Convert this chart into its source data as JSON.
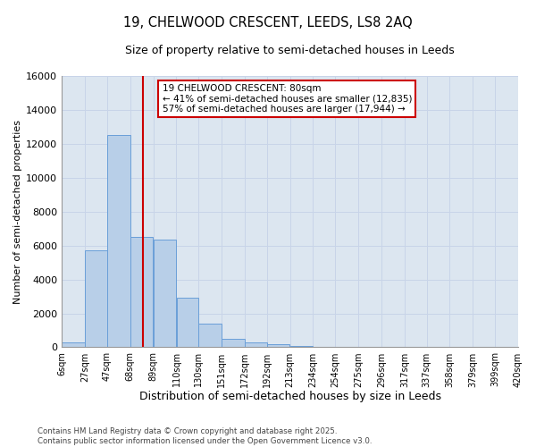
{
  "title_line1": "19, CHELWOOD CRESCENT, LEEDS, LS8 2AQ",
  "title_line2": "Size of property relative to semi-detached houses in Leeds",
  "xlabel": "Distribution of semi-detached houses by size in Leeds",
  "ylabel": "Number of semi-detached properties",
  "footnote_line1": "Contains HM Land Registry data © Crown copyright and database right 2025.",
  "footnote_line2": "Contains public sector information licensed under the Open Government Licence v3.0.",
  "annotation_title": "19 CHELWOOD CRESCENT: 80sqm",
  "annotation_line1": "← 41% of semi-detached houses are smaller (12,835)",
  "annotation_line2": "57% of semi-detached houses are larger (17,944) →",
  "property_size": 80,
  "bar_color": "#b8cfe8",
  "bar_edge_color": "#6a9fd8",
  "line_color": "#cc0000",
  "annotation_box_color": "#cc0000",
  "grid_color": "#c8d4e8",
  "background_color": "#dce6f0",
  "bins": [
    6,
    27,
    47,
    68,
    89,
    110,
    130,
    151,
    172,
    192,
    213,
    234,
    254,
    275,
    296,
    317,
    337,
    358,
    379,
    399,
    420
  ],
  "bin_labels": [
    "6sqm",
    "27sqm",
    "47sqm",
    "68sqm",
    "89sqm",
    "110sqm",
    "130sqm",
    "151sqm",
    "172sqm",
    "192sqm",
    "213sqm",
    "234sqm",
    "254sqm",
    "275sqm",
    "296sqm",
    "317sqm",
    "337sqm",
    "358sqm",
    "379sqm",
    "399sqm",
    "420sqm"
  ],
  "bar_heights": [
    300,
    5700,
    12500,
    6500,
    6350,
    2900,
    1400,
    500,
    300,
    180,
    100,
    50,
    40,
    25,
    15,
    10,
    5,
    4,
    3,
    2
  ],
  "ylim": [
    0,
    16000
  ],
  "yticks": [
    0,
    2000,
    4000,
    6000,
    8000,
    10000,
    12000,
    14000,
    16000
  ]
}
